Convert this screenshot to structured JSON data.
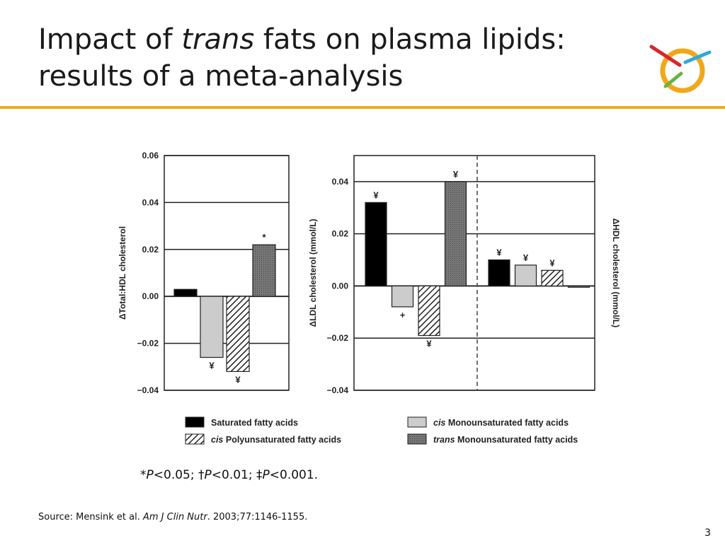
{
  "slide": {
    "title_part1": "Impact of ",
    "title_italic": "trans",
    "title_part2": " fats on plasma lipids: results of a meta-analysis",
    "footnote": {
      "s1": "*",
      "p1": "P",
      "s2": "<0.05; †",
      "p2": "P",
      "s3": "<0.01; ‡",
      "p3": "P",
      "s4": "<0.001."
    },
    "source": {
      "prefix": "Source: Mensink et al. ",
      "journal": "Am J Clin Nutr",
      "suffix": ". 2003;77:1146-1155."
    },
    "page_number": "3"
  },
  "colors": {
    "accent_rule": "#f0a81a",
    "saturated": "#000000",
    "cis_mono": "#cccccc",
    "cis_poly": "hatched",
    "trans_mono": "#6a6a6a"
  },
  "icons": {
    "logo": "orbit-logo-icon"
  },
  "chart_data": [
    {
      "type": "bar",
      "ylabel": "ΔTotal:HDL cholesterol",
      "ylim": [
        -0.04,
        0.06
      ],
      "yticks": [
        "0.06",
        "0.04",
        "0.02",
        "0.00",
        "−0.02",
        "−0.04"
      ],
      "grid": true,
      "series": [
        {
          "name": "Saturated fatty acids",
          "values": [
            0.003
          ],
          "marker": ""
        },
        {
          "name": "cis Monounsaturated fatty acids",
          "values": [
            -0.026
          ],
          "marker": "¥"
        },
        {
          "name": "cis Polyunsaturated fatty acids",
          "values": [
            -0.032
          ],
          "marker": "¥"
        },
        {
          "name": "trans Monounsaturated fatty acids",
          "values": [
            0.022
          ],
          "marker": "*"
        }
      ]
    },
    {
      "type": "bar",
      "ylabel": "ΔLDL cholesterol (mmol/L)",
      "ylim": [
        -0.04,
        0.05
      ],
      "yticks": [
        "0.04",
        "0.02",
        "0.00",
        "−0.02",
        "−0.04"
      ],
      "grid": true,
      "series": [
        {
          "name": "Saturated fatty acids",
          "values": [
            0.032
          ],
          "marker": "¥"
        },
        {
          "name": "cis Monounsaturated fatty acids",
          "values": [
            -0.008
          ],
          "marker": "+"
        },
        {
          "name": "cis Polyunsaturated fatty acids",
          "values": [
            -0.019
          ],
          "marker": "¥"
        },
        {
          "name": "trans Monounsaturated fatty acids",
          "values": [
            0.04
          ],
          "marker": "¥"
        }
      ]
    },
    {
      "type": "bar",
      "ylabel": "ΔHDL cholesterol (mmol/L)",
      "ylim": [
        -0.04,
        0.05
      ],
      "series": [
        {
          "name": "Saturated fatty acids",
          "values": [
            0.01
          ],
          "marker": "¥"
        },
        {
          "name": "cis Monounsaturated fatty acids",
          "values": [
            0.008
          ],
          "marker": "¥"
        },
        {
          "name": "cis Polyunsaturated fatty acids",
          "values": [
            0.006
          ],
          "marker": "¥"
        },
        {
          "name": "trans Monounsaturated fatty acids",
          "values": [
            -0.0005
          ],
          "marker": ""
        }
      ]
    }
  ],
  "legend": [
    {
      "name": "Saturated fatty acids",
      "italic_prefix": "",
      "text": "Saturated fatty acids"
    },
    {
      "name": "cis Monounsaturated fatty acids",
      "italic_prefix": "cis",
      "text": " Monounsaturated fatty acids"
    },
    {
      "name": "cis Polyunsaturated fatty acids",
      "italic_prefix": "cis",
      "text": " Polyunsaturated fatty acids"
    },
    {
      "name": "trans Monounsaturated fatty acids",
      "italic_prefix": "trans",
      "text": "  Monounsaturated fatty acids"
    }
  ]
}
